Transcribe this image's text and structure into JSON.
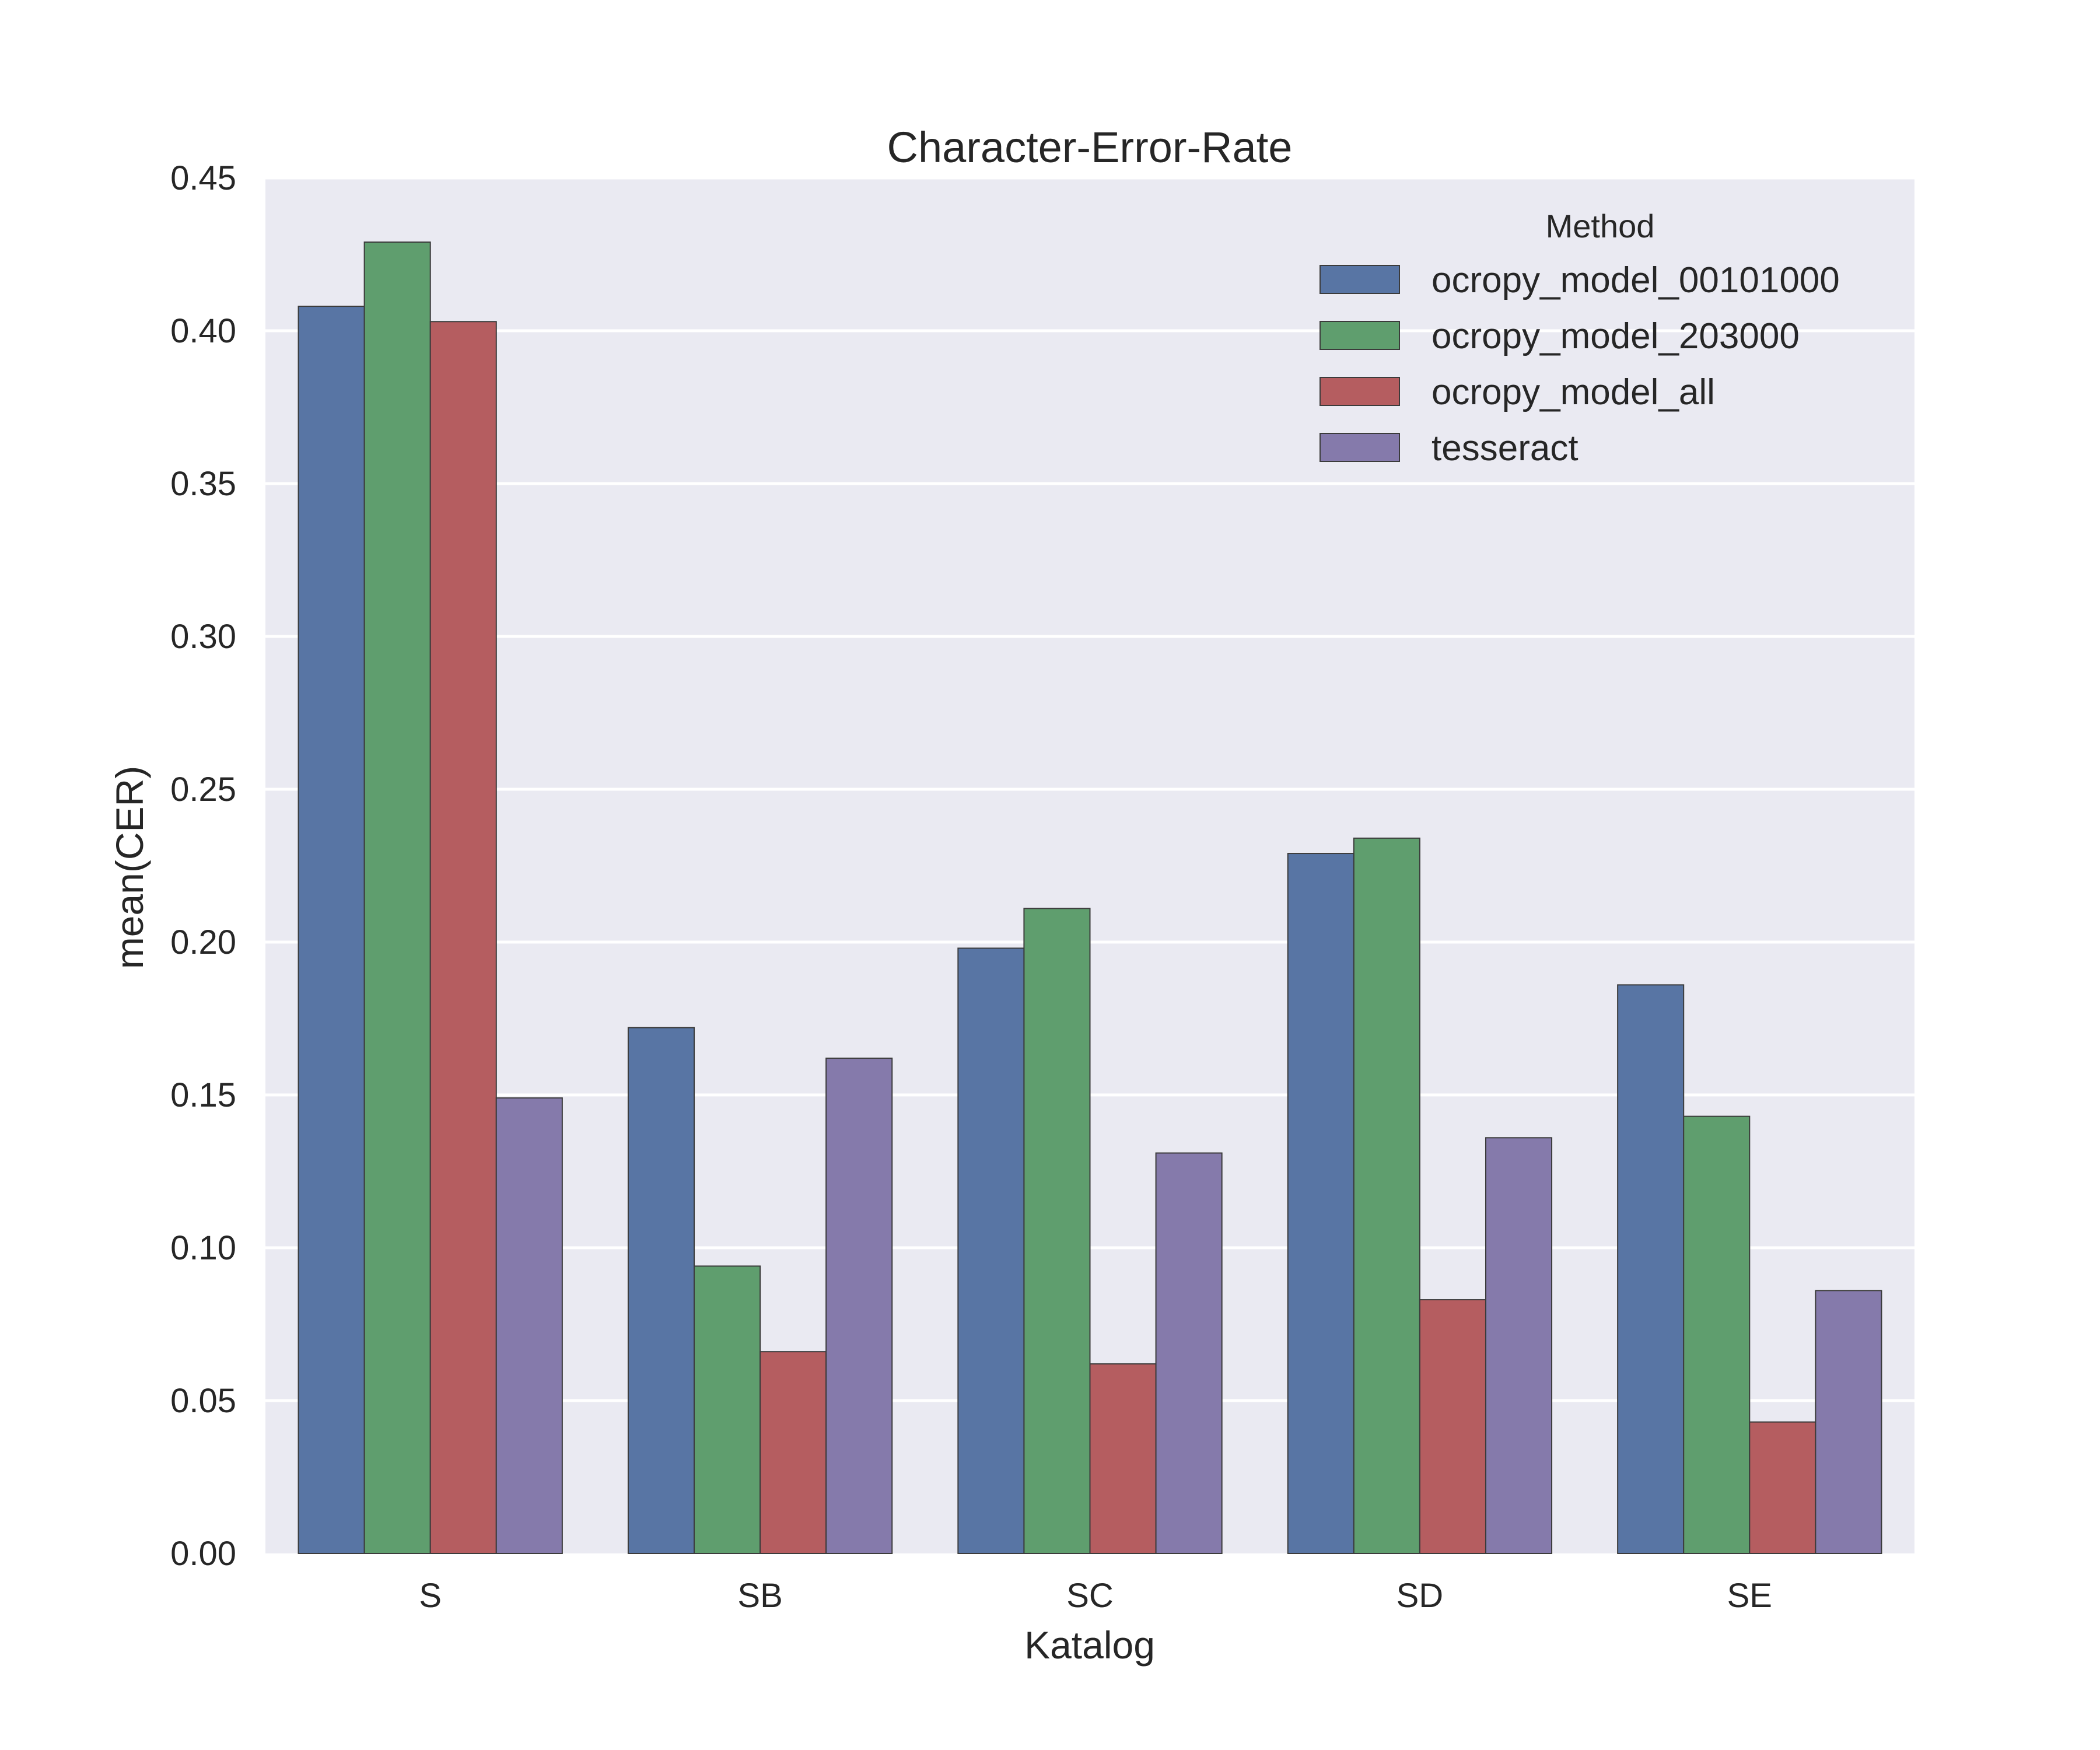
{
  "chart_data": {
    "type": "bar",
    "title": "Character-Error-Rate",
    "xlabel": "Katalog",
    "ylabel": "mean(CER)",
    "ylim": [
      0,
      0.45
    ],
    "yticks": [
      "0.00",
      "0.05",
      "0.10",
      "0.15",
      "0.20",
      "0.25",
      "0.30",
      "0.35",
      "0.40",
      "0.45"
    ],
    "categories": [
      "S",
      "SB",
      "SC",
      "SD",
      "SE"
    ],
    "grid": true,
    "legend": {
      "title": "Method",
      "placement": "top-right"
    },
    "series": [
      {
        "name": "ocropy_model_00101000",
        "color": "#5875a4",
        "values": [
          0.408,
          0.172,
          0.198,
          0.229,
          0.186
        ]
      },
      {
        "name": "ocropy_model_203000",
        "color": "#5f9e6e",
        "values": [
          0.429,
          0.094,
          0.211,
          0.234,
          0.143
        ]
      },
      {
        "name": "ocropy_model_all",
        "color": "#b55d60",
        "values": [
          0.403,
          0.066,
          0.062,
          0.083,
          0.043
        ]
      },
      {
        "name": "tesseract",
        "color": "#857aab",
        "values": [
          0.149,
          0.162,
          0.131,
          0.136,
          0.086
        ]
      }
    ],
    "colors": {
      "plot_background": "#eaeaf2",
      "grid": "#ffffff",
      "bar_edge": "#3b3b3b"
    }
  }
}
